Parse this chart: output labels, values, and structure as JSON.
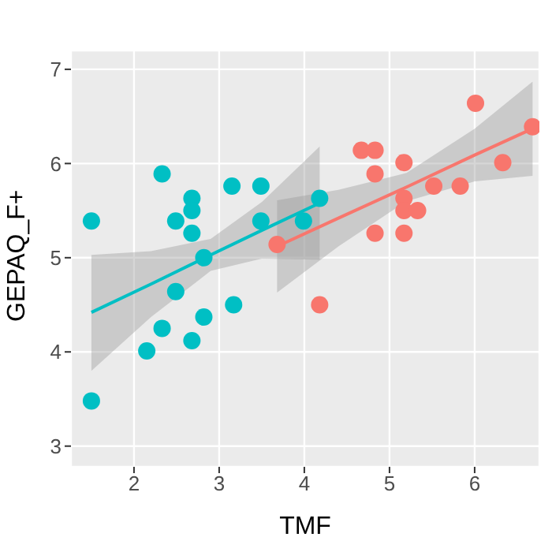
{
  "chart_data": {
    "type": "scatter",
    "xlabel": "TMF",
    "ylabel": "GEPAQ_F+",
    "xlim": [
      1.26,
      6.76
    ],
    "xticks": [
      2,
      3,
      4,
      5,
      6
    ],
    "ylim": [
      2.78,
      7.2
    ],
    "yticks": [
      3,
      4,
      5,
      6,
      7
    ],
    "grid": true,
    "series": [
      {
        "marker": "circle",
        "color": "#00bfc4",
        "x": [
          1.5,
          1.5,
          2.33,
          2.68,
          2.68,
          2.49,
          2.68,
          3.15,
          3.49,
          3.49,
          4.18,
          3.99,
          2.82,
          2.49,
          3.17,
          2.82,
          2.33,
          2.68,
          2.15
        ],
        "values": [
          5.39,
          3.48,
          5.89,
          5.63,
          5.5,
          5.39,
          5.26,
          5.76,
          5.76,
          5.39,
          5.63,
          5.39,
          5.0,
          4.64,
          4.5,
          4.37,
          4.25,
          4.12,
          4.01
        ]
      },
      {
        "marker": "circle",
        "color": "#f8766d",
        "x": [
          3.68,
          4.18,
          4.67,
          4.83,
          4.83,
          4.83,
          5.17,
          5.17,
          5.17,
          5.33,
          5.17,
          5.52,
          5.83,
          6.01,
          6.33,
          6.68
        ],
        "values": [
          5.14,
          4.5,
          6.14,
          6.14,
          5.89,
          5.26,
          6.01,
          5.63,
          5.5,
          5.5,
          5.26,
          5.76,
          5.76,
          6.64,
          6.01,
          6.39
        ]
      },
      {
        "type": "line",
        "color": "#00bfc4",
        "x": [
          1.5,
          2.2,
          2.9,
          3.5,
          4.18
        ],
        "values": [
          4.42,
          4.72,
          5.03,
          5.29,
          5.58
        ],
        "lower": [
          3.8,
          4.37,
          4.86,
          4.99,
          4.98
        ],
        "upper": [
          5.03,
          5.07,
          5.2,
          5.59,
          6.18
        ]
      },
      {
        "type": "line",
        "color": "#f8766d",
        "x": [
          3.68,
          4.4,
          5.2,
          6.0,
          6.68
        ],
        "values": [
          5.12,
          5.42,
          5.75,
          6.09,
          6.37
        ],
        "lower": [
          4.63,
          5.12,
          5.6,
          5.81,
          5.87
        ],
        "upper": [
          5.61,
          5.72,
          5.9,
          6.37,
          6.87
        ]
      }
    ]
  }
}
